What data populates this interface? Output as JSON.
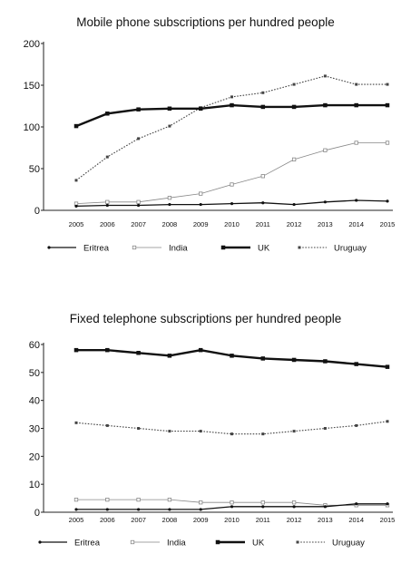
{
  "chart_data": [
    {
      "type": "line",
      "title": "Mobile phone subscriptions per hundred people",
      "xlabel": "",
      "ylabel": "",
      "x": [
        2005,
        2006,
        2007,
        2008,
        2009,
        2010,
        2011,
        2012,
        2013,
        2014,
        2015
      ],
      "ylim": [
        0,
        200
      ],
      "yticks": [
        0,
        50,
        100,
        150,
        200
      ],
      "grid": false,
      "legend": "bottom",
      "series": [
        {
          "name": "Eritrea",
          "style": "solid-thin-dot",
          "color": "#111111",
          "values": [
            5,
            6,
            6,
            7,
            7,
            8,
            9,
            7,
            10,
            12,
            11
          ]
        },
        {
          "name": "India",
          "style": "solid-hairline-open-square",
          "color": "#888888",
          "values": [
            8,
            10,
            10,
            15,
            20,
            31,
            41,
            61,
            72,
            81,
            81
          ]
        },
        {
          "name": "UK",
          "style": "solid-bold-square",
          "color": "#111111",
          "values": [
            101,
            116,
            121,
            122,
            122,
            126,
            124,
            124,
            126,
            126,
            126
          ]
        },
        {
          "name": "Uruguay",
          "style": "dotted-square",
          "color": "#444444",
          "values": [
            36,
            64,
            86,
            101,
            123,
            136,
            141,
            151,
            161,
            151,
            151
          ]
        }
      ]
    },
    {
      "type": "line",
      "title": "Fixed telephone subscriptions per hundred people",
      "xlabel": "",
      "ylabel": "",
      "x": [
        2005,
        2006,
        2007,
        2008,
        2009,
        2010,
        2011,
        2012,
        2013,
        2014,
        2015
      ],
      "ylim": [
        0,
        60
      ],
      "yticks": [
        0,
        10,
        20,
        30,
        40,
        50,
        60
      ],
      "grid": false,
      "legend": "bottom",
      "series": [
        {
          "name": "Eritrea",
          "style": "solid-thin-dot",
          "color": "#111111",
          "values": [
            1,
            1,
            1,
            1,
            1,
            2,
            2,
            2,
            2,
            3,
            3
          ]
        },
        {
          "name": "India",
          "style": "solid-hairline-open-square",
          "color": "#888888",
          "values": [
            4.5,
            4.5,
            4.5,
            4.5,
            3.5,
            3.5,
            3.5,
            3.5,
            2.5,
            2.5,
            2.5
          ]
        },
        {
          "name": "UK",
          "style": "solid-bold-square",
          "color": "#111111",
          "values": [
            58,
            58,
            57,
            56,
            58,
            56,
            55,
            54.5,
            54,
            53,
            52
          ]
        },
        {
          "name": "Uruguay",
          "style": "dotted-square",
          "color": "#444444",
          "values": [
            32,
            31,
            30,
            29,
            29,
            28,
            28,
            29,
            30,
            31,
            32.5
          ]
        }
      ]
    }
  ]
}
